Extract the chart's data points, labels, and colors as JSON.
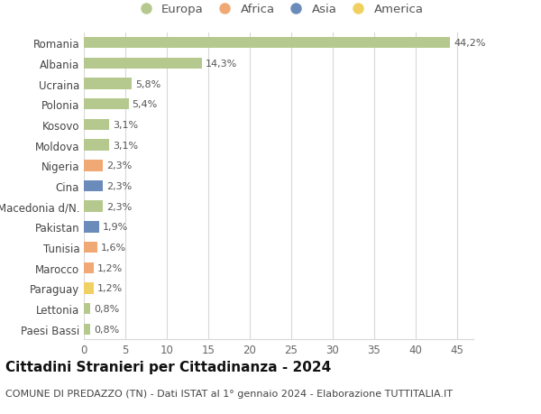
{
  "categories": [
    "Romania",
    "Albania",
    "Ucraina",
    "Polonia",
    "Kosovo",
    "Moldova",
    "Nigeria",
    "Cina",
    "Macedonia d/N.",
    "Pakistan",
    "Tunisia",
    "Marocco",
    "Paraguay",
    "Lettonia",
    "Paesi Bassi"
  ],
  "values": [
    44.2,
    14.3,
    5.8,
    5.4,
    3.1,
    3.1,
    2.3,
    2.3,
    2.3,
    1.9,
    1.6,
    1.2,
    1.2,
    0.8,
    0.8
  ],
  "labels": [
    "44,2%",
    "14,3%",
    "5,8%",
    "5,4%",
    "3,1%",
    "3,1%",
    "2,3%",
    "2,3%",
    "2,3%",
    "1,9%",
    "1,6%",
    "1,2%",
    "1,2%",
    "0,8%",
    "0,8%"
  ],
  "continents": [
    "Europa",
    "Europa",
    "Europa",
    "Europa",
    "Europa",
    "Europa",
    "Africa",
    "Asia",
    "Europa",
    "Asia",
    "Africa",
    "Africa",
    "America",
    "Europa",
    "Europa"
  ],
  "continent_colors": {
    "Europa": "#b5c98e",
    "Africa": "#f0a875",
    "Asia": "#6b8cba",
    "America": "#f0d060"
  },
  "legend_order": [
    "Europa",
    "Africa",
    "Asia",
    "America"
  ],
  "title": "Cittadini Stranieri per Cittadinanza - 2024",
  "subtitle": "COMUNE DI PREDAZZO (TN) - Dati ISTAT al 1° gennaio 2024 - Elaborazione TUTTITALIA.IT",
  "xlim": [
    0,
    47
  ],
  "xticks": [
    0,
    5,
    10,
    15,
    20,
    25,
    30,
    35,
    40,
    45
  ],
  "background_color": "#ffffff",
  "grid_color": "#d8d8d8",
  "bar_height": 0.55,
  "title_fontsize": 11,
  "subtitle_fontsize": 8,
  "tick_fontsize": 8.5,
  "label_fontsize": 8,
  "legend_fontsize": 9.5
}
